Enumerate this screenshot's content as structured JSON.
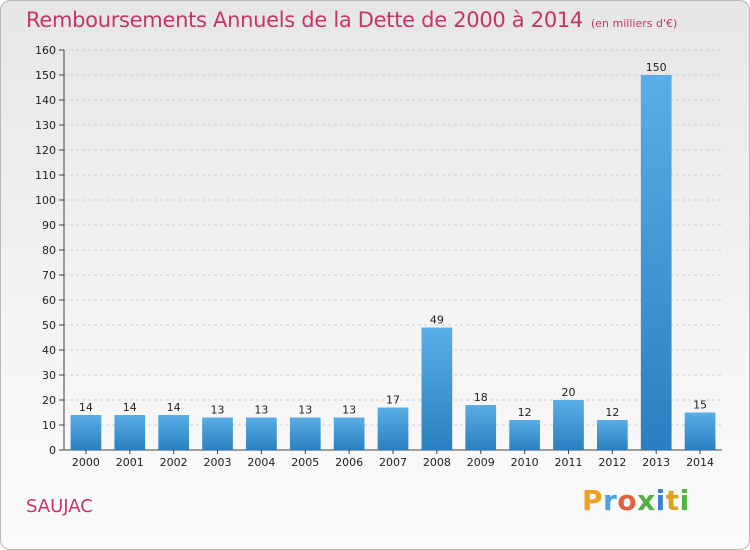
{
  "header": {
    "title": "Remboursements Annuels de la Dette de 2000 à 2014",
    "unit": "(en milliers d'€)"
  },
  "footer": {
    "commune": "SAUJAC",
    "logo": {
      "text": "Proxiti",
      "letters": [
        "P",
        "r",
        "o",
        "x",
        "i",
        "t",
        "i"
      ],
      "colors": [
        "#f0a020",
        "#4aa0e0",
        "#e06040",
        "#50b040",
        "#3d7fd0",
        "#e0a020",
        "#50b040"
      ]
    }
  },
  "chart_data": {
    "type": "bar",
    "categories": [
      "2000",
      "2001",
      "2002",
      "2003",
      "2004",
      "2005",
      "2006",
      "2007",
      "2008",
      "2009",
      "2010",
      "2011",
      "2012",
      "2013",
      "2014"
    ],
    "values": [
      14,
      14,
      14,
      13,
      13,
      13,
      13,
      17,
      49,
      18,
      12,
      20,
      12,
      150,
      15
    ],
    "value_labels": [
      "14",
      "14",
      "14",
      "13",
      "13",
      "13",
      "13",
      "17",
      "49",
      "18",
      "12",
      "20",
      "12",
      "150",
      "15"
    ],
    "y_ticks": [
      0,
      10,
      20,
      30,
      40,
      50,
      60,
      70,
      80,
      90,
      100,
      110,
      120,
      130,
      140,
      150,
      160
    ],
    "y_tick_labels": [
      "0",
      "10",
      "20",
      "30",
      "40",
      "50",
      "60",
      "70",
      "80",
      "90",
      "100",
      "110",
      "120",
      "130",
      "140",
      "150",
      "160"
    ],
    "title": "Remboursements Annuels de la Dette de 2000 à 2014",
    "xlabel": "",
    "ylabel": "",
    "ylim": [
      0,
      160
    ],
    "grid": true,
    "bar_color_top": "#5aaee6",
    "bar_color_bottom": "#2a7fc0"
  }
}
